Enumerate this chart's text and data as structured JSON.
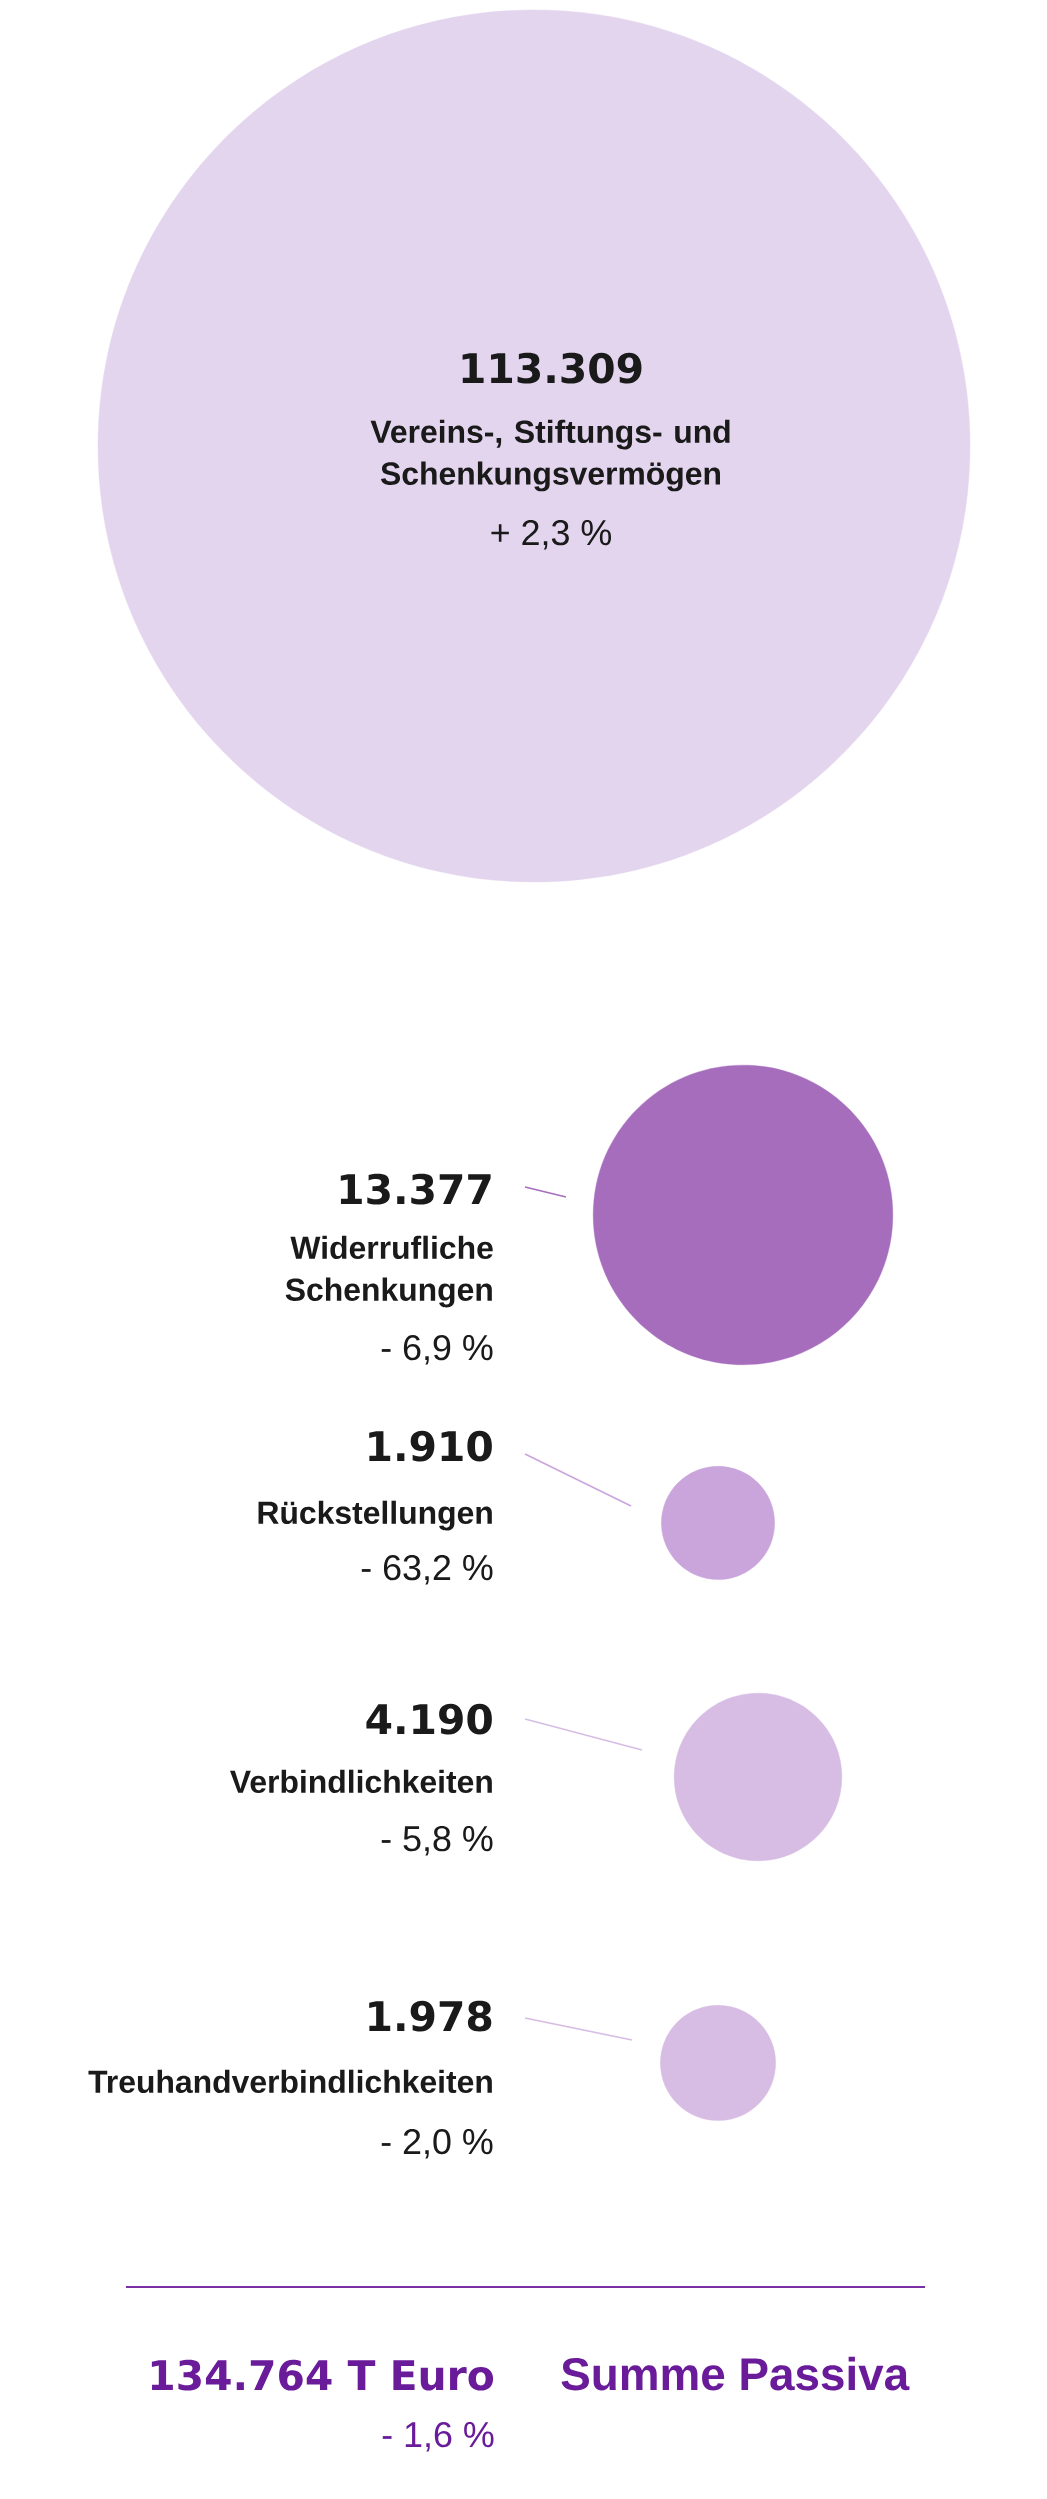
{
  "chart_data": {
    "type": "other",
    "categories": [
      "Vereins-, Stiftungs- und Schenkungsvermögen",
      "Widerrufliche Schenkungen",
      "Rückstellungen",
      "Verbindlichkeiten",
      "Treuhandverbindlichkeiten"
    ],
    "values": [
      113309,
      13377,
      1910,
      4190,
      1978
    ],
    "value_labels": [
      "113.309",
      "13.377",
      "1.910",
      "4.190",
      "1.978"
    ],
    "colors": [
      "#e3d5ee",
      "#a66dbd",
      "#c9a5dc",
      "#d7bde4",
      "#d7bde4"
    ],
    "annotations": [
      "+ 2,3 %",
      "- 6,9 %",
      "- 63,2 %",
      "- 5,8 %",
      "- 2,0 %",
      "134.764 T Euro",
      "- 1,6 %",
      "Summe Passiva"
    ]
  }
}
